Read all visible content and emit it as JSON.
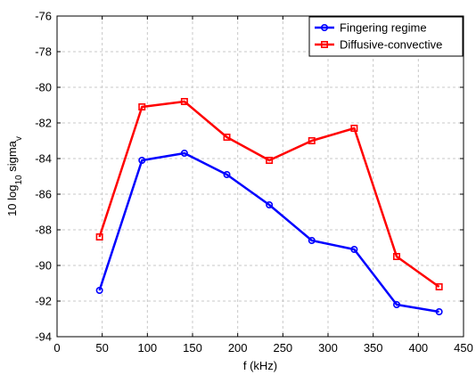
{
  "chart_data": {
    "type": "line",
    "xlabel": "f (kHz)",
    "ylabel_main": "10 log",
    "ylabel_sub1": "10",
    "ylabel_mid": " sigma",
    "ylabel_sub2": "v",
    "xlim": [
      0,
      450
    ],
    "ylim": [
      -94,
      -76
    ],
    "x_ticks": [
      0,
      50,
      100,
      150,
      200,
      250,
      300,
      350,
      400,
      450
    ],
    "y_ticks": [
      -94,
      -92,
      -90,
      -88,
      -86,
      -84,
      -82,
      -80,
      -78,
      -76
    ],
    "grid": true,
    "legend_position": "top-right",
    "x": [
      47,
      94,
      141,
      188,
      235,
      282,
      329,
      376,
      423
    ],
    "series": [
      {
        "name": "Fingering regime",
        "color": "#0000ff",
        "marker": "circle",
        "values": [
          -91.4,
          -84.1,
          -83.7,
          -84.9,
          -86.6,
          -88.6,
          -89.1,
          -92.2,
          -92.6
        ]
      },
      {
        "name": "Diffusive-convective",
        "color": "#ff0000",
        "marker": "square",
        "values": [
          -88.4,
          -81.1,
          -80.8,
          -82.8,
          -84.1,
          -83.0,
          -82.3,
          -89.5,
          -91.2
        ]
      }
    ]
  }
}
